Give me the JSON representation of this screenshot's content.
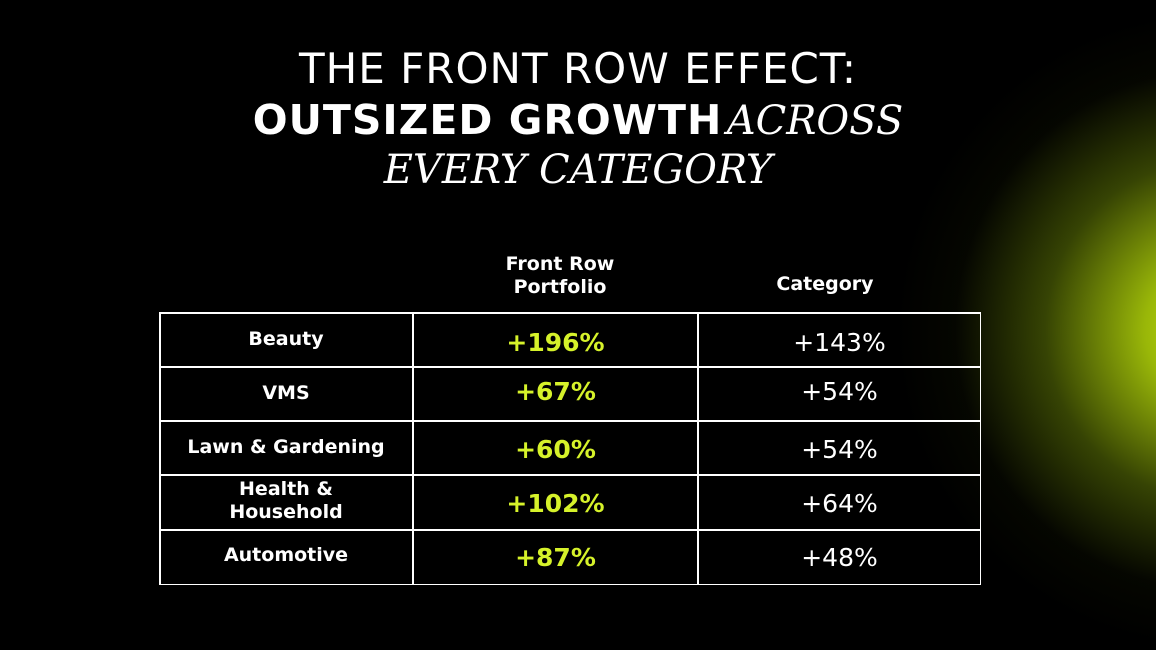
{
  "title": {
    "line1": "THE FRONT ROW EFFECT:",
    "line2_bold": "OUTSIZED GROWTH",
    "line2_italic": "ACROSS",
    "line3_italic": "EVERY CATEGORY"
  },
  "colors": {
    "background": "#000000",
    "text": "#ffffff",
    "accent": "#d6f22a",
    "glow": "#c8e60a"
  },
  "chart_data": {
    "type": "table",
    "columns": [
      "Front Row Portfolio",
      "Category"
    ],
    "column_headers": {
      "portfolio_line1": "Front Row",
      "portfolio_line2": "Portfolio",
      "category": "Category"
    },
    "rows": [
      {
        "name": "Beauty",
        "front_row_label": "+196%",
        "category_label": "+143%",
        "front_row": 196,
        "category": 143
      },
      {
        "name": "VMS",
        "front_row_label": "+67%",
        "category_label": "+54%",
        "front_row": 67,
        "category": 54
      },
      {
        "name": "Lawn & Gardening",
        "front_row_label": "+60%",
        "category_label": "+54%",
        "front_row": 60,
        "category": 54
      },
      {
        "name": "Health & Household",
        "front_row_label": "+102%",
        "category_label": "+64%",
        "front_row": 102,
        "category": 64
      },
      {
        "name": "Automotive",
        "front_row_label": "+87%",
        "category_label": "+48%",
        "front_row": 87,
        "category": 48
      }
    ]
  }
}
